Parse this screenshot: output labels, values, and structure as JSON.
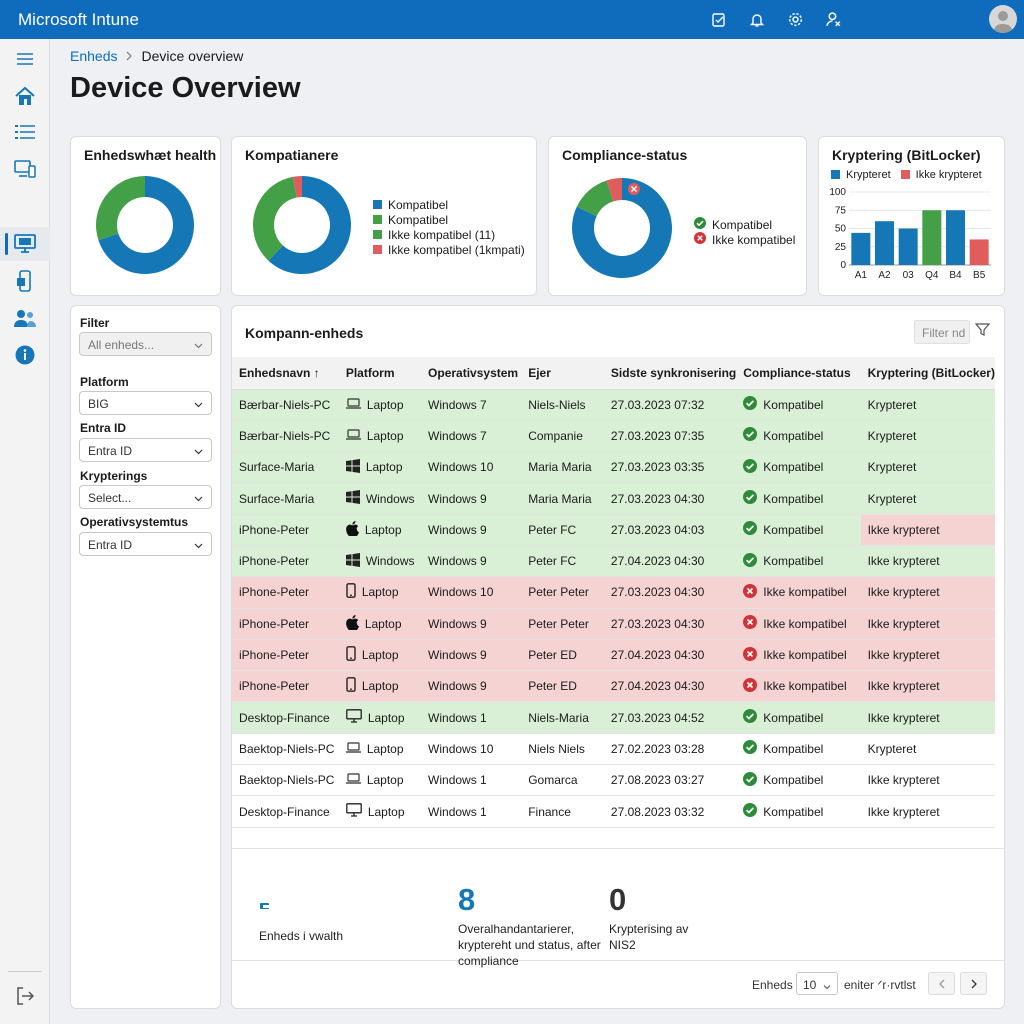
{
  "app": {
    "title": "Microsoft Intune"
  },
  "topbar_icons": [
    "feedback-icon",
    "bell-icon",
    "gear-icon",
    "help-person-icon"
  ],
  "sidebar_icons": [
    "menu-icon",
    "home-icon",
    "list-icon",
    "devices-icon",
    "device-overview-icon",
    "apps-icon",
    "users-icon",
    "info-icon",
    "sign-out-icon"
  ],
  "breadcrumb": {
    "parent": "Enheds",
    "current": "Device overview"
  },
  "page": {
    "title": "Device Overview"
  },
  "colors": {
    "blue": "#1677b7",
    "green": "#43a047",
    "red": "#e05d5d",
    "ok_row": "#daf0d6",
    "bad_row": "#f6d3d3",
    "brand": "#0f6cbd"
  },
  "cards": {
    "health": {
      "title": "Enhedswhæt health"
    },
    "compat": {
      "title": "Kompatianere",
      "legend": [
        "Kompatibel",
        "Kompatibel",
        "Ikke kompatibel (11)",
        "Ikke kompatibel (1kmpati)"
      ]
    },
    "compliance": {
      "title": "Compliance-status",
      "legend": [
        "Kompatibel",
        "Ikke kompatibel"
      ]
    },
    "encryption": {
      "title": "Kryptering (BitLocker)",
      "legend": [
        "Krypteret",
        "Ikke krypteret"
      ]
    }
  },
  "chart_data": [
    {
      "type": "pie",
      "title": "Enhedswhæt health",
      "values": [
        70,
        30
      ],
      "colors": [
        "#1677b7",
        "#43a047"
      ]
    },
    {
      "type": "pie",
      "title": "Kompatianere",
      "values": [
        62,
        35,
        3
      ],
      "colors": [
        "#1677b7",
        "#43a047",
        "#e05d5d"
      ]
    },
    {
      "type": "pie",
      "title": "Compliance-status",
      "values": [
        82,
        13,
        5
      ],
      "colors": [
        "#1677b7",
        "#43a047",
        "#e05d5d"
      ]
    },
    {
      "type": "bar",
      "title": "Kryptering (BitLocker)",
      "categories": [
        "A1",
        "A2",
        "03",
        "Q4",
        "B4",
        "B5"
      ],
      "values": [
        44,
        60,
        50,
        75,
        75,
        35
      ],
      "colors": [
        "#1677b7",
        "#1677b7",
        "#1677b7",
        "#43a047",
        "#1677b7",
        "#e05d5d"
      ],
      "yticks": [
        "0",
        "25",
        "50",
        "75",
        "100"
      ],
      "ylim": [
        0,
        100
      ]
    }
  ],
  "filters": {
    "filter_label": "Filter",
    "filter_value": "All enheds...",
    "platform_label": "Platform",
    "platform_value": "BIG",
    "entra_label": "Entra ID",
    "entra_value": "Entra ID",
    "kryptering_label": "Krypterings",
    "kryptering_value": "Select...",
    "os_label": "Operativsystemtus",
    "os_value": "Entra ID"
  },
  "table": {
    "title": "Kompann-enheds",
    "filter_placeholder": "Filter nd",
    "columns": [
      "Enhedsnavn ↑",
      "Platform",
      "Operativsystem",
      "Ejer",
      "Sidste synkronisering",
      "Compliance-status",
      "Kryptering (BitLocker)"
    ],
    "rows": [
      {
        "name": "Bærbar-Niels-PC",
        "platform_icon": "laptop-icon",
        "platform": "Laptop",
        "os": "Windows 7",
        "owner": "Niels-Niels",
        "sync": "27.03.2023 07:32",
        "compliance": "Kompatibel",
        "compliant": true,
        "encryption": "Krypteret",
        "row": "ok"
      },
      {
        "name": "Bærbar-Niels-PC",
        "platform_icon": "laptop-icon",
        "platform": "Laptop",
        "os": "Windows 7",
        "owner": "Companie",
        "sync": "27.03.2023 07:35",
        "compliance": "Kompatibel",
        "compliant": true,
        "encryption": "Krypteret",
        "row": "ok"
      },
      {
        "name": "Surface-Maria",
        "platform_icon": "windows-icon",
        "platform": "Laptop",
        "os": "Windows 10",
        "owner": "Maria Maria",
        "sync": "27.03.2023 03:35",
        "compliance": "Kompatibel",
        "compliant": true,
        "encryption": "Krypteret",
        "row": "ok"
      },
      {
        "name": "Surface-Maria",
        "platform_icon": "windows-icon",
        "platform": "Windows",
        "os": "Windows 9",
        "owner": "Maria Maria",
        "sync": "27.03.2023 04:30",
        "compliance": "Kompatibel",
        "compliant": true,
        "encryption": "Krypteret",
        "row": "ok"
      },
      {
        "name": "iPhone-Peter",
        "platform_icon": "apple-icon",
        "platform": "Laptop",
        "os": "Windows 9",
        "owner": "Peter FC",
        "sync": "27.03.2023 04:03",
        "compliance": "Kompatibel",
        "compliant": true,
        "encryption": "Ikke krypteret",
        "row": "ok",
        "enc_warn": true
      },
      {
        "name": "iPhone-Peter",
        "platform_icon": "windows-icon",
        "platform": "Windows",
        "os": "Windows 9",
        "owner": "Peter FC",
        "sync": "27.04.2023 04:30",
        "compliance": "Kompatibel",
        "compliant": true,
        "encryption": "Ikke krypteret",
        "row": "ok"
      },
      {
        "name": "iPhone-Peter",
        "platform_icon": "phone-icon",
        "platform": "Laptop",
        "os": "Windows 10",
        "owner": "Peter Peter",
        "sync": "27.03.2023 04:30",
        "compliance": "Ikke kompatibel",
        "compliant": false,
        "encryption": "Ikke krypteret",
        "row": "bad"
      },
      {
        "name": "iPhone-Peter",
        "platform_icon": "apple-icon",
        "platform": "Laptop",
        "os": "Windows 9",
        "owner": "Peter Peter",
        "sync": "27.03.2023 04:30",
        "compliance": "Ikke kompatibel",
        "compliant": false,
        "encryption": "Ikke krypteret",
        "row": "bad"
      },
      {
        "name": "iPhone-Peter",
        "platform_icon": "phone-icon",
        "platform": "Laptop",
        "os": "Windows 9",
        "owner": "Peter ED",
        "sync": "27.04.2023 04:30",
        "compliance": "Ikke kompatibel",
        "compliant": false,
        "encryption": "Ikke krypteret",
        "row": "bad"
      },
      {
        "name": "iPhone-Peter",
        "platform_icon": "phone-icon",
        "platform": "Laptop",
        "os": "Windows 9",
        "owner": "Peter ED",
        "sync": "27.04.2023 04:30",
        "compliance": "Ikke kompatibel",
        "compliant": false,
        "encryption": "Ikke krypteret",
        "row": "bad"
      },
      {
        "name": "Desktop-Finance",
        "platform_icon": "monitor-icon",
        "platform": "Laptop",
        "os": "Windows 1",
        "owner": "Niels-Maria",
        "sync": "27.03.2023 04:52",
        "compliance": "Kompatibel",
        "compliant": true,
        "encryption": "Ikke krypteret",
        "row": "ok"
      },
      {
        "name": "Baektop-Niels-PC",
        "platform_icon": "laptop-icon",
        "platform": "Laptop",
        "os": "Windows 10",
        "owner": "Niels Niels",
        "sync": "27.02.2023 03:28",
        "compliance": "Kompatibel",
        "compliant": true,
        "encryption": "Krypteret",
        "row": "plain"
      },
      {
        "name": "Baektop-Niels-PC",
        "platform_icon": "laptop-icon",
        "platform": "Laptop",
        "os": "Windows 1",
        "owner": "Gomarca",
        "sync": "27.08.2023 03:27",
        "compliance": "Kompatibel",
        "compliant": true,
        "encryption": "Ikke krypteret",
        "row": "plain"
      },
      {
        "name": "Desktop-Finance",
        "platform_icon": "monitor-icon",
        "platform": "Laptop",
        "os": "Windows 1",
        "owner": "Finance",
        "sync": "27.08.2023 03:32",
        "compliance": "Kompatibel",
        "compliant": true,
        "encryption": "Ikke krypteret",
        "row": "plain"
      }
    ]
  },
  "stats": {
    "s1_label": "Enheds i vwalth",
    "s2_value": "8",
    "s2_label": "Overalhandantarierer, kryptereht und status, after compliance",
    "s3_value": "0",
    "s3_label": "Krypterising av NIS2"
  },
  "pager": {
    "label": "Enheds",
    "page_size": "10",
    "range_text": "eniter ᐟr·rvtlst"
  }
}
